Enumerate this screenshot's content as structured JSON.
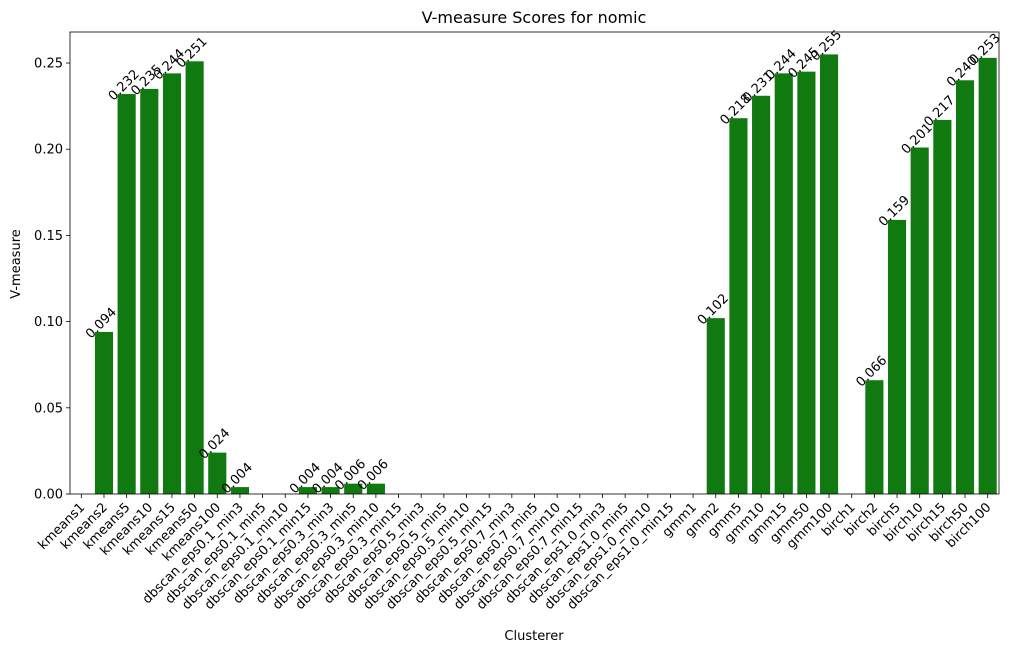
{
  "chart_data": {
    "type": "bar",
    "title": "V-measure Scores for nomic",
    "xlabel": "Clusterer",
    "ylabel": "V-measure",
    "ylim": [
      0,
      0.268
    ],
    "yticks": [
      "0.00",
      "0.05",
      "0.10",
      "0.15",
      "0.20",
      "0.25"
    ],
    "bar_color": "#107a10",
    "grid": false,
    "categories": [
      "kmeans1",
      "kmeans2",
      "kmeans5",
      "kmeans10",
      "kmeans15",
      "kmeans50",
      "kmeans100",
      "dbscan_eps0.1_min3",
      "dbscan_eps0.1_min5",
      "dbscan_eps0.1_min10",
      "dbscan_eps0.1_min15",
      "dbscan_eps0.3_min3",
      "dbscan_eps0.3_min5",
      "dbscan_eps0.3_min10",
      "dbscan_eps0.3_min15",
      "dbscan_eps0.5_min3",
      "dbscan_eps0.5_min5",
      "dbscan_eps0.5_min10",
      "dbscan_eps0.5_min15",
      "dbscan_eps0.7_min3",
      "dbscan_eps0.7_min5",
      "dbscan_eps0.7_min10",
      "dbscan_eps0.7_min15",
      "dbscan_eps1.0_min3",
      "dbscan_eps1.0_min5",
      "dbscan_eps1.0_min10",
      "dbscan_eps1.0_min15",
      "gmm1",
      "gmm2",
      "gmm5",
      "gmm10",
      "gmm15",
      "gmm50",
      "gmm100",
      "birch1",
      "birch2",
      "birch5",
      "birch10",
      "birch15",
      "birch50",
      "birch100"
    ],
    "values": [
      0,
      0.094,
      0.232,
      0.235,
      0.244,
      0.251,
      0.024,
      0.004,
      0,
      0,
      0.004,
      0.004,
      0.006,
      0.006,
      0,
      0,
      0,
      0,
      0,
      0,
      0,
      0,
      0,
      0,
      0,
      0,
      0,
      0,
      0.102,
      0.218,
      0.231,
      0.244,
      0.245,
      0.255,
      0,
      0.066,
      0.159,
      0.201,
      0.217,
      0.24,
      0.253
    ],
    "data_labels": [
      "",
      "0.094",
      "0.232",
      "0.235",
      "0.244",
      "0.251",
      "0.024",
      "0.004",
      "",
      "",
      "0.004",
      "0.004",
      "0.006",
      "0.006",
      "",
      "",
      "",
      "",
      "",
      "",
      "",
      "",
      "",
      "",
      "",
      "",
      "",
      "",
      "0.102",
      "0.218",
      "0.231",
      "0.244",
      "0.245",
      "0.255",
      "",
      "0.066",
      "0.159",
      "0.201",
      "0.217",
      "0.240",
      "0.253"
    ]
  }
}
